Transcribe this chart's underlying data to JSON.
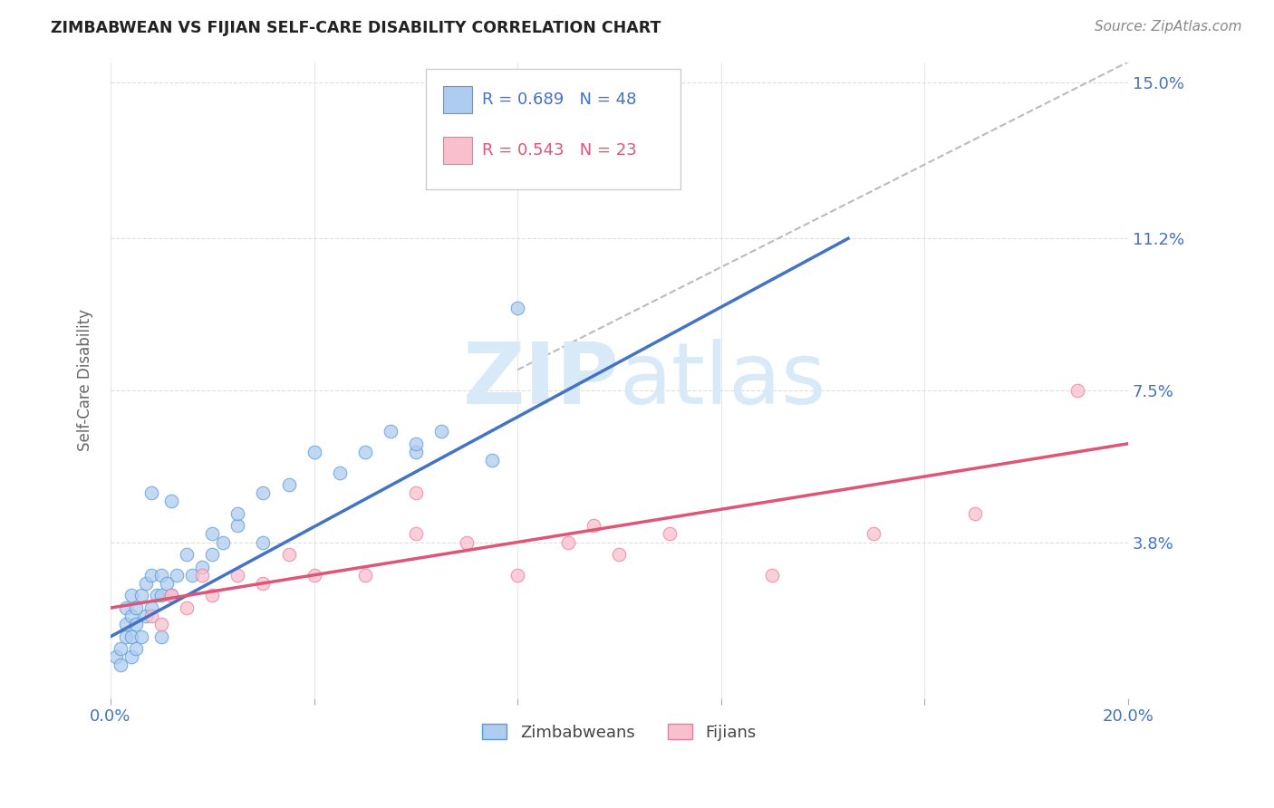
{
  "title": "ZIMBABWEAN VS FIJIAN SELF-CARE DISABILITY CORRELATION CHART",
  "source": "Source: ZipAtlas.com",
  "ylabel": "Self-Care Disability",
  "xlim": [
    0.0,
    0.2
  ],
  "ylim": [
    0.0,
    0.155
  ],
  "xticks": [
    0.0,
    0.04,
    0.08,
    0.12,
    0.16,
    0.2
  ],
  "xtick_labels": [
    "0.0%",
    "",
    "",
    "",
    "",
    "20.0%"
  ],
  "ytick_values": [
    0.038,
    0.075,
    0.112,
    0.15
  ],
  "ytick_labels": [
    "3.8%",
    "7.5%",
    "11.2%",
    "15.0%"
  ],
  "blue_R": 0.689,
  "blue_N": 48,
  "pink_R": 0.543,
  "pink_N": 23,
  "blue_fill_color": "#aecbf0",
  "pink_fill_color": "#f9bfcc",
  "blue_edge_color": "#5b9bd5",
  "pink_edge_color": "#e87da0",
  "blue_line_color": "#4472c4",
  "pink_line_color": "#e05577",
  "axis_text_color": "#4472c4",
  "title_color": "#222222",
  "ylabel_color": "#666666",
  "source_color": "#888888",
  "watermark_color": "#d8eaf8",
  "background_color": "#ffffff",
  "grid_color": "#dddddd",
  "blue_scatter_x": [
    0.001,
    0.002,
    0.002,
    0.003,
    0.003,
    0.003,
    0.004,
    0.004,
    0.004,
    0.004,
    0.005,
    0.005,
    0.005,
    0.006,
    0.006,
    0.007,
    0.007,
    0.008,
    0.008,
    0.009,
    0.01,
    0.01,
    0.01,
    0.011,
    0.012,
    0.013,
    0.015,
    0.016,
    0.018,
    0.02,
    0.022,
    0.025,
    0.03,
    0.035,
    0.04,
    0.045,
    0.05,
    0.055,
    0.06,
    0.065,
    0.008,
    0.012,
    0.02,
    0.025,
    0.03,
    0.06,
    0.075,
    0.08
  ],
  "blue_scatter_y": [
    0.01,
    0.008,
    0.012,
    0.015,
    0.018,
    0.022,
    0.01,
    0.015,
    0.02,
    0.025,
    0.012,
    0.018,
    0.022,
    0.015,
    0.025,
    0.02,
    0.028,
    0.022,
    0.03,
    0.025,
    0.015,
    0.025,
    0.03,
    0.028,
    0.025,
    0.03,
    0.035,
    0.03,
    0.032,
    0.035,
    0.038,
    0.042,
    0.05,
    0.052,
    0.06,
    0.055,
    0.06,
    0.065,
    0.06,
    0.065,
    0.05,
    0.048,
    0.04,
    0.045,
    0.038,
    0.062,
    0.058,
    0.095
  ],
  "pink_scatter_x": [
    0.008,
    0.01,
    0.012,
    0.015,
    0.018,
    0.02,
    0.025,
    0.03,
    0.035,
    0.04,
    0.05,
    0.06,
    0.07,
    0.08,
    0.09,
    0.095,
    0.1,
    0.11,
    0.13,
    0.15,
    0.06,
    0.17,
    0.19
  ],
  "pink_scatter_y": [
    0.02,
    0.018,
    0.025,
    0.022,
    0.03,
    0.025,
    0.03,
    0.028,
    0.035,
    0.03,
    0.03,
    0.04,
    0.038,
    0.03,
    0.038,
    0.042,
    0.035,
    0.04,
    0.03,
    0.04,
    0.05,
    0.045,
    0.075
  ],
  "blue_line_x": [
    0.0,
    0.145
  ],
  "blue_line_y": [
    0.015,
    0.112
  ],
  "pink_line_x": [
    0.0,
    0.2
  ],
  "pink_line_y": [
    0.022,
    0.062
  ],
  "diag_line_x": [
    0.08,
    0.2
  ],
  "diag_line_y": [
    0.08,
    0.155
  ]
}
